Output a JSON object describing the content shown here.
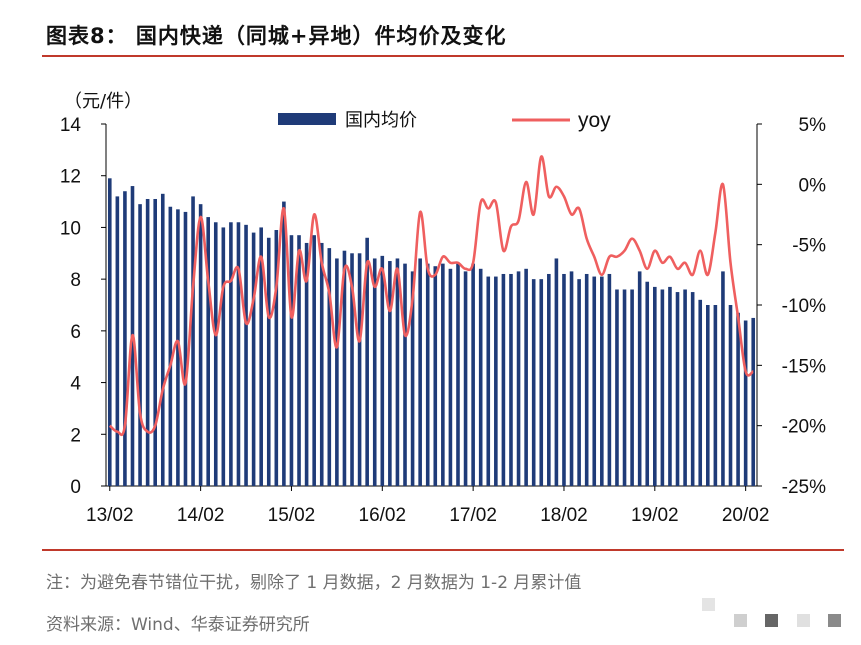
{
  "header": {
    "title": "图表8：  国内快递（同城+异地）件均价及变化"
  },
  "footer": {
    "note": "注：为避免春节错位干扰，剔除了 1 月数据，2 月数据为 1-2 月累计值",
    "source": "资料来源：Wind、华泰证券研究所"
  },
  "colors": {
    "bar": "#1f3b78",
    "line": "#ef5f5f",
    "rule": "#c0392b"
  },
  "chart_data": {
    "type": "bar+line",
    "y_unit_label": "（元/件）",
    "legend": {
      "bar": "国内均价",
      "line": "yoy"
    },
    "x_tick_labels": [
      "13/02",
      "14/02",
      "15/02",
      "16/02",
      "17/02",
      "18/02",
      "19/02",
      "20/02"
    ],
    "left_axis": {
      "range": [
        0,
        14
      ],
      "ticks": [
        "0",
        "2",
        "4",
        "6",
        "8",
        "10",
        "12",
        "14"
      ]
    },
    "right_axis": {
      "range": [
        -25,
        5
      ],
      "ticks": [
        "-25%",
        "-20%",
        "-15%",
        "-10%",
        "-5%",
        "0%",
        "5%"
      ]
    },
    "series": [
      {
        "name": "国内均价",
        "axis": "left",
        "values": [
          11.9,
          11.2,
          11.4,
          11.6,
          10.9,
          11.1,
          11.1,
          11.3,
          10.8,
          10.7,
          10.6,
          11.2,
          10.9,
          10.4,
          10.2,
          10.0,
          10.2,
          10.2,
          10.1,
          9.8,
          10.0,
          9.6,
          9.9,
          11.0,
          9.7,
          9.7,
          9.4,
          9.7,
          9.4,
          9.2,
          8.8,
          9.1,
          9.0,
          9.0,
          9.6,
          8.8,
          8.9,
          8.7,
          8.8,
          8.6,
          8.3,
          8.8,
          8.6,
          8.5,
          8.6,
          8.4,
          8.6,
          8.3,
          8.6,
          8.4,
          8.1,
          8.1,
          8.2,
          8.2,
          8.3,
          8.4,
          8.0,
          8.0,
          8.2,
          8.8,
          8.2,
          8.3,
          8.0,
          8.2,
          8.1,
          8.1,
          8.2,
          7.6,
          7.6,
          7.6,
          8.3,
          7.9,
          7.7,
          7.6,
          7.7,
          7.5,
          7.6,
          7.5,
          7.2,
          7.0,
          7.0,
          8.3,
          7.0,
          6.7,
          6.4,
          6.5
        ]
      },
      {
        "name": "yoy",
        "axis": "right",
        "values": [
          -20.0,
          -20.5,
          -20.0,
          -12.5,
          -19.0,
          -20.5,
          -20.0,
          -17.0,
          -15.0,
          -13.0,
          -16.5,
          -8.5,
          -2.7,
          -8.0,
          -12.5,
          -8.5,
          -8.0,
          -7.0,
          -11.5,
          -9.5,
          -6.0,
          -11.0,
          -8.5,
          -2.0,
          -11.0,
          -5.5,
          -8.0,
          -2.5,
          -6.5,
          -9.0,
          -13.5,
          -7.0,
          -8.5,
          -13.0,
          -6.5,
          -8.5,
          -7.0,
          -10.5,
          -7.0,
          -12.5,
          -9.5,
          -2.3,
          -7.0,
          -7.5,
          -6.0,
          -6.5,
          -6.5,
          -7.0,
          -6.5,
          -1.5,
          -2.0,
          -1.5,
          -5.5,
          -3.5,
          -3.0,
          0.2,
          -2.5,
          2.3,
          -1.0,
          -0.2,
          -1.0,
          -2.5,
          -2.0,
          -4.5,
          -6.0,
          -7.5,
          -6.0,
          -6.0,
          -5.5,
          -4.5,
          -5.5,
          -7.0,
          -5.5,
          -6.5,
          -6.0,
          -7.0,
          -6.5,
          -7.5,
          -5.5,
          -7.5,
          -4.0,
          0.0,
          -6.5,
          -11.0,
          -15.5,
          -15.5
        ]
      }
    ]
  }
}
